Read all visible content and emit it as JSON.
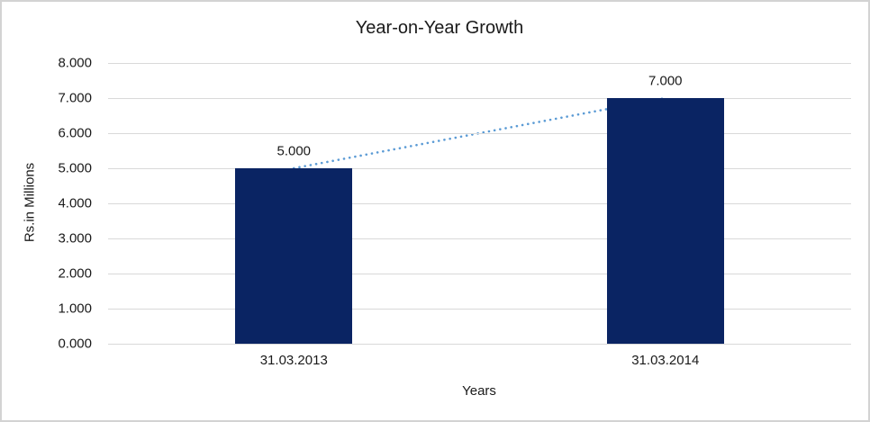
{
  "window": {
    "background": "#ffffff",
    "border_color": "#d3d3d3"
  },
  "chart_data": {
    "type": "bar",
    "title": "Year-on-Year Growth",
    "categories": [
      "31.03.2013",
      "31.03.2014"
    ],
    "values": [
      5,
      7
    ],
    "value_labels": [
      "5.000",
      "7.000"
    ],
    "xlabel": "Years",
    "ylabel": "Rs.in Millions",
    "ylim": [
      0,
      8
    ],
    "ytick_values": [
      0,
      1,
      2,
      3,
      4,
      5,
      6,
      7,
      8
    ],
    "ytick_labels": [
      "0.000",
      "1.000",
      "2.000",
      "3.000",
      "4.000",
      "5.000",
      "6.000",
      "7.000",
      "8.000"
    ],
    "grid": true,
    "legend": "none",
    "trendline": {
      "type": "linear",
      "style": "dotted",
      "connects": "bar tops"
    },
    "colors": {
      "bar": "#0a2463",
      "trendline": "#5b9bd5",
      "gridline": "#d9d9d9",
      "text": "#1a1a1a"
    }
  }
}
